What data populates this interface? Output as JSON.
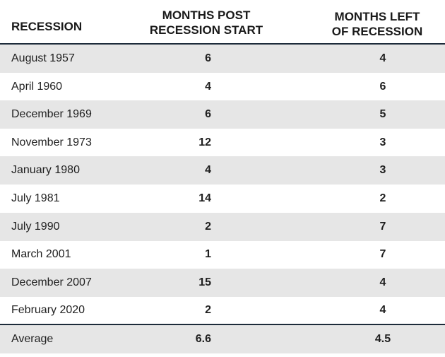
{
  "table": {
    "header": [
      "RECESSION",
      [
        "MONTHS POST",
        "RECESSION START"
      ],
      [
        "MONTHS LEFT",
        "OF RECESSION"
      ]
    ],
    "rows": [
      [
        "August 1957",
        6,
        4
      ],
      [
        "April 1960",
        4,
        6
      ],
      [
        "December 1969",
        6,
        5
      ],
      [
        "November 1973",
        12,
        3
      ],
      [
        "January 1980",
        4,
        3
      ],
      [
        "July 1981",
        14,
        2
      ],
      [
        "July 1990",
        2,
        7
      ],
      [
        "March 2001",
        1,
        7
      ],
      [
        "December 2007",
        15,
        4
      ],
      [
        "February 2020",
        2,
        4
      ]
    ],
    "footer": [
      "Average",
      6.6,
      4.5
    ]
  }
}
